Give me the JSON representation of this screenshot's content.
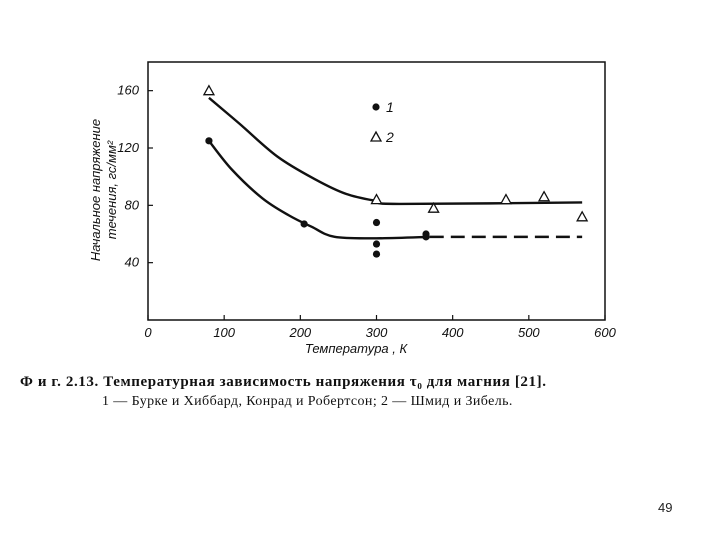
{
  "chart_data": {
    "type": "scatter",
    "xlabel": "Температура , К",
    "ylabel_line1": "Начальное напряжение",
    "ylabel_line2": "течения, гс/мм²",
    "xlim": [
      0,
      600
    ],
    "ylim": [
      0,
      180
    ],
    "x_ticks": [
      0,
      100,
      200,
      300,
      400,
      500,
      600
    ],
    "x_tick_labels": [
      "0",
      "100",
      "200",
      "300",
      "400",
      "500",
      "600"
    ],
    "y_ticks": [
      40,
      80,
      120,
      160
    ],
    "y_tick_labels": [
      "40",
      "80",
      "120",
      "160"
    ],
    "grid": false,
    "legend_position": "top-center",
    "series": [
      {
        "name": "1",
        "marker": "filled-circle",
        "points": [
          [
            80,
            125
          ],
          [
            205,
            67
          ],
          [
            300,
            68
          ],
          [
            300,
            53
          ],
          [
            300,
            46
          ],
          [
            365,
            60
          ],
          [
            365,
            58
          ]
        ],
        "curve": [
          [
            80,
            125
          ],
          [
            110,
            105
          ],
          [
            150,
            85
          ],
          [
            185,
            73
          ],
          [
            215,
            65
          ],
          [
            245,
            58
          ],
          [
            300,
            57
          ],
          [
            370,
            58
          ]
        ],
        "curve_dashed": [
          [
            370,
            58
          ],
          [
            570,
            58
          ]
        ]
      },
      {
        "name": "2",
        "marker": "open-triangle",
        "points": [
          [
            80,
            160
          ],
          [
            300,
            84
          ],
          [
            375,
            78
          ],
          [
            470,
            84
          ],
          [
            520,
            86
          ],
          [
            570,
            72
          ]
        ],
        "curve": [
          [
            80,
            155
          ],
          [
            120,
            137
          ],
          [
            170,
            114
          ],
          [
            220,
            98
          ],
          [
            260,
            88
          ],
          [
            300,
            83
          ],
          [
            330,
            81
          ],
          [
            570,
            82
          ]
        ]
      }
    ]
  },
  "caption": {
    "line1": "Ф и г.  2.13.  Температурная  зависимость  напряжения  τ₀  для  магния  [21].",
    "line2": "1 — Бурке  и  Хиббард,  Конрад  и  Робертсон;  2 — Шмид  и  Зибель."
  },
  "page_number": "49",
  "colors": {
    "ink": "#111111",
    "background": "#ffffff"
  }
}
